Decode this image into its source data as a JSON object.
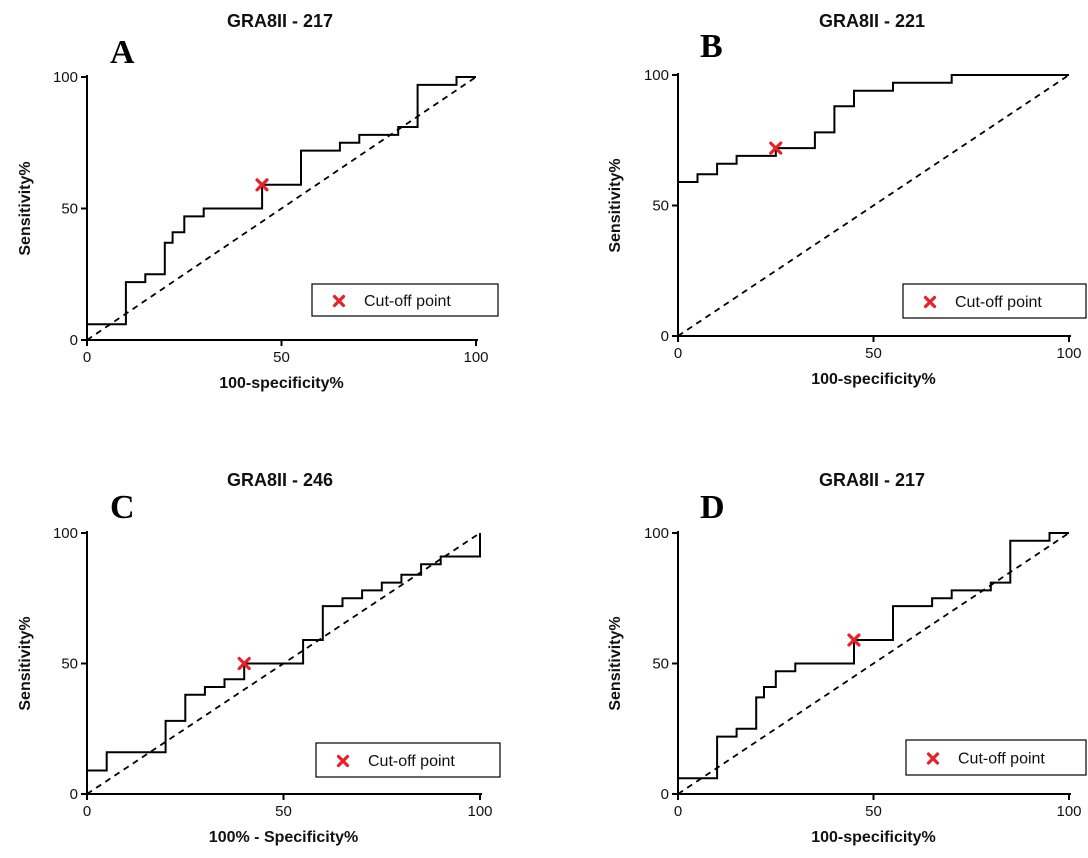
{
  "chart_data": [
    {
      "type": "line",
      "panel": "A",
      "title": "GRA8II - 217",
      "xlabel": "100-specificity%",
      "ylabel": "Sensitivity%",
      "xlim": [
        0,
        100
      ],
      "ylim": [
        0,
        100
      ],
      "xticks": [
        "0",
        "50",
        "100"
      ],
      "yticks": [
        "0",
        "50",
        "100"
      ],
      "legend": "Cut-off point",
      "legend_position": "bottom-right",
      "reference_line": [
        [
          0,
          0
        ],
        [
          100,
          100
        ]
      ],
      "series": [
        {
          "x": [
            0,
            10,
            10,
            15,
            15,
            20,
            20,
            22,
            22,
            25,
            25,
            30,
            30,
            45,
            45,
            55,
            55,
            65,
            65,
            70,
            70,
            80,
            80,
            85,
            85,
            95,
            95,
            100
          ],
          "y": [
            6,
            6,
            22,
            22,
            25,
            25,
            37,
            37,
            41,
            41,
            47,
            47,
            50,
            50,
            59,
            59,
            72,
            72,
            75,
            75,
            78,
            78,
            81,
            81,
            97,
            97,
            100,
            100
          ]
        }
      ],
      "cutoff": [
        45,
        59
      ],
      "colors": {
        "curve": "#000000",
        "cutoff": "#e8202a"
      }
    },
    {
      "type": "line",
      "panel": "B",
      "title": "GRA8II - 221",
      "xlabel": "100-specificity%",
      "ylabel": "Sensitivity%",
      "xlim": [
        0,
        100
      ],
      "ylim": [
        0,
        100
      ],
      "xticks": [
        "0",
        "50",
        "100"
      ],
      "yticks": [
        "0",
        "50",
        "100"
      ],
      "legend": "Cut-off point",
      "legend_position": "bottom-right",
      "reference_line": [
        [
          0,
          0
        ],
        [
          100,
          100
        ]
      ],
      "series": [
        {
          "x": [
            0,
            5,
            5,
            10,
            10,
            15,
            15,
            25,
            25,
            35,
            35,
            40,
            40,
            45,
            45,
            55,
            55,
            70,
            70,
            100
          ],
          "y": [
            59,
            59,
            62,
            62,
            66,
            66,
            69,
            69,
            72,
            72,
            78,
            78,
            88,
            88,
            94,
            94,
            97,
            97,
            100,
            100
          ]
        }
      ],
      "cutoff": [
        25,
        72
      ],
      "colors": {
        "curve": "#000000",
        "cutoff": "#e8202a"
      }
    },
    {
      "type": "line",
      "panel": "C",
      "title": "GRA8II - 246",
      "xlabel": "100% - Specificity%",
      "ylabel": "Sensitivity%",
      "xlim": [
        0,
        100
      ],
      "ylim": [
        0,
        100
      ],
      "xticks": [
        "0",
        "50",
        "100"
      ],
      "yticks": [
        "0",
        "50",
        "100"
      ],
      "legend": "Cut-off point",
      "legend_position": "bottom-right",
      "reference_line": [
        [
          0,
          0
        ],
        [
          100,
          100
        ]
      ],
      "series": [
        {
          "x": [
            0,
            0,
            5,
            5,
            20,
            20,
            25,
            25,
            30,
            30,
            35,
            35,
            40,
            40,
            55,
            55,
            60,
            60,
            65,
            65,
            70,
            70,
            75,
            75,
            80,
            80,
            85,
            85,
            90,
            90,
            100,
            100
          ],
          "y": [
            0,
            9,
            9,
            16,
            16,
            28,
            28,
            38,
            38,
            41,
            41,
            44,
            44,
            50,
            50,
            59,
            59,
            72,
            72,
            75,
            75,
            78,
            78,
            81,
            81,
            84,
            84,
            88,
            88,
            91,
            91,
            100
          ]
        }
      ],
      "cutoff": [
        40,
        50
      ],
      "colors": {
        "curve": "#000000",
        "cutoff": "#e8202a"
      }
    },
    {
      "type": "line",
      "panel": "D",
      "title": "GRA8II - 217",
      "xlabel": "100-specificity%",
      "ylabel": "Sensitivity%",
      "xlim": [
        0,
        100
      ],
      "ylim": [
        0,
        100
      ],
      "xticks": [
        "0",
        "50",
        "100"
      ],
      "yticks": [
        "0",
        "50",
        "100"
      ],
      "legend": "Cut-off point",
      "legend_position": "bottom-right",
      "reference_line": [
        [
          0,
          0
        ],
        [
          100,
          100
        ]
      ],
      "series": [
        {
          "x": [
            0,
            10,
            10,
            15,
            15,
            20,
            20,
            22,
            22,
            25,
            25,
            30,
            30,
            45,
            45,
            55,
            55,
            65,
            65,
            70,
            70,
            80,
            80,
            85,
            85,
            95,
            95,
            100
          ],
          "y": [
            6,
            6,
            22,
            22,
            25,
            25,
            37,
            37,
            41,
            41,
            47,
            47,
            50,
            50,
            59,
            59,
            72,
            72,
            75,
            75,
            78,
            78,
            81,
            81,
            97,
            97,
            100,
            100
          ]
        }
      ],
      "cutoff": [
        45,
        59
      ],
      "colors": {
        "curve": "#000000",
        "cutoff": "#e8202a"
      }
    }
  ]
}
